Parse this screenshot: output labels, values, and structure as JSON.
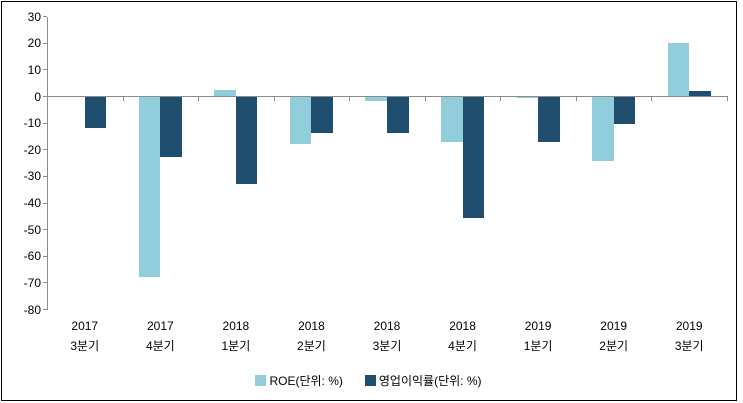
{
  "chart_data": {
    "type": "bar",
    "categories": [
      "2017 3분기",
      "2017 4분기",
      "2018 1분기",
      "2018 2분기",
      "2018 3분기",
      "2018 4분기",
      "2019 1분기",
      "2019 2분기",
      "2019 3분기"
    ],
    "category_lines": [
      [
        "2017",
        "3분기"
      ],
      [
        "2017",
        "4분기"
      ],
      [
        "2018",
        "1분기"
      ],
      [
        "2018",
        "2분기"
      ],
      [
        "2018",
        "3분기"
      ],
      [
        "2018",
        "4분기"
      ],
      [
        "2019",
        "1분기"
      ],
      [
        "2019",
        "2분기"
      ],
      [
        "2019",
        "3분기"
      ]
    ],
    "series": [
      {
        "name": "ROE(단위: %)",
        "color": "#92CDDC",
        "values": [
          0,
          -67.5,
          2.5,
          -17.5,
          -1.5,
          -17,
          -0.5,
          -24,
          20
        ]
      },
      {
        "name": "영업이익률(단위: %)",
        "color": "#1F4E6E",
        "values": [
          -11.5,
          -22.5,
          -32.5,
          -13.5,
          -13.5,
          -45.5,
          -17,
          -10,
          2
        ]
      }
    ],
    "title": "",
    "xlabel": "",
    "ylabel": "",
    "ylim": [
      -80,
      30
    ],
    "y_ticks": [
      30,
      20,
      10,
      0,
      -10,
      -20,
      -30,
      -40,
      -50,
      -60,
      -70,
      -80
    ],
    "grid": false,
    "legend_position": "bottom"
  },
  "colors": {
    "axis": "#8C8C8C",
    "border": "#000000",
    "background": "#FFFFFF",
    "text": "#000000"
  }
}
